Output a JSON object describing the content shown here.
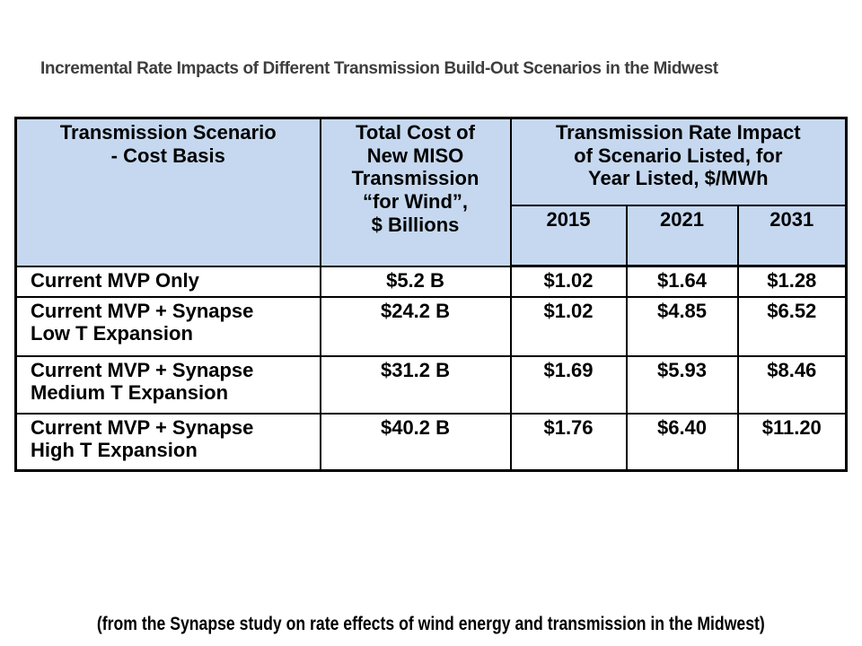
{
  "slide": {
    "title": "Incremental Rate Impacts of Different Transmission Build-Out Scenarios in the Midwest",
    "footer_note": "(from the Synapse study on rate effects of wind energy and transmission in the Midwest)"
  },
  "table": {
    "header": {
      "scenario": "Transmission Scenario\n- Cost Basis",
      "cost": "Total Cost of\nNew MISO\nTransmission\n“for Wind”,\n$ Billions",
      "rate_group": "Transmission Rate Impact\nof Scenario Listed, for\nYear Listed, $/MWh",
      "years": [
        "2015",
        "2021",
        "2031"
      ]
    },
    "rows": [
      {
        "scenario": "Current MVP Only",
        "cost": "$5.2 B",
        "rates": [
          "$1.02",
          "$1.64",
          "$1.28"
        ]
      },
      {
        "scenario": "Current MVP + Synapse\nLow T Expansion",
        "cost": "$24.2 B",
        "rates": [
          "$1.02",
          "$4.85",
          "$6.52"
        ]
      },
      {
        "scenario": "Current MVP + Synapse\nMedium T Expansion",
        "cost": "$31.2 B",
        "rates": [
          "$1.69",
          "$5.93",
          "$8.46"
        ]
      },
      {
        "scenario": "Current MVP + Synapse\nHigh T Expansion",
        "cost": "$40.2 B",
        "rates": [
          "$1.76",
          "$6.40",
          "$11.20"
        ]
      }
    ]
  },
  "colors": {
    "header_bg": "#c5d8ef",
    "border": "#000000",
    "row_bg": "#ffffff",
    "title_text": "#3e3e3e",
    "body_text": "#000000"
  }
}
